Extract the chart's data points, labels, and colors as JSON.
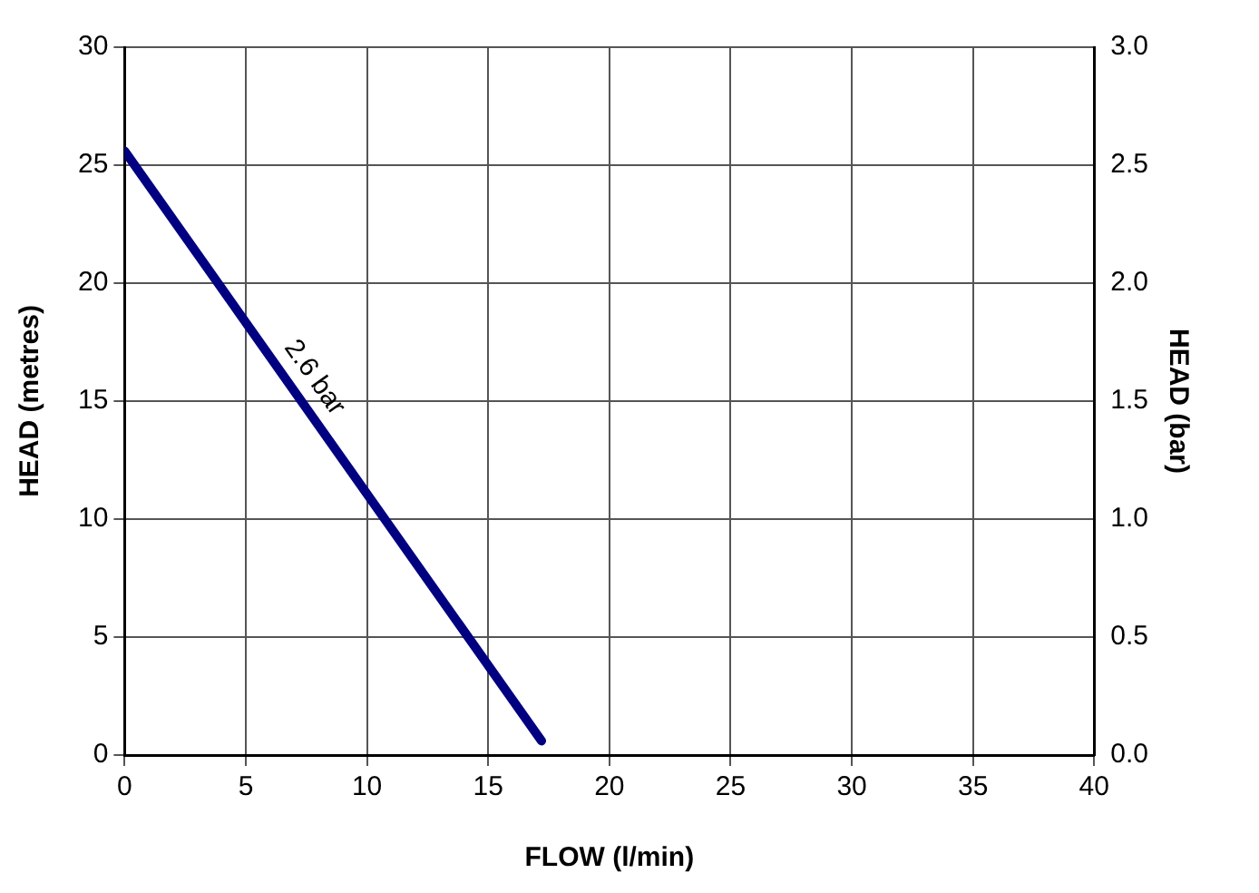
{
  "chart_data": {
    "type": "line",
    "xlabel": "FLOW (l/min)",
    "ylabel": "HEAD (metres)",
    "y2label": "HEAD (bar)",
    "x": [
      0,
      17.2
    ],
    "series": [
      {
        "color": "#000080",
        "values": [
          25.6,
          0.6
        ]
      }
    ],
    "xlim": [
      0,
      40
    ],
    "xticks": [
      0,
      5,
      10,
      15,
      20,
      25,
      30,
      35,
      40
    ],
    "ylim": [
      0,
      30
    ],
    "yticks": [
      0,
      5,
      10,
      15,
      20,
      25,
      30
    ],
    "y2lim": [
      0,
      3
    ],
    "y2ticks": [
      {
        "value": 0,
        "label": "0.0"
      },
      {
        "value": 0.5,
        "label": "0.5"
      },
      {
        "value": 1,
        "label": "1.0"
      },
      {
        "value": 1.5,
        "label": "1.5"
      },
      {
        "value": 2,
        "label": "2.0"
      },
      {
        "value": 2.5,
        "label": "2.5"
      },
      {
        "value": 3,
        "label": "3.0"
      }
    ],
    "annotations": [
      {
        "text": "2.6 bar",
        "x": 7,
        "y": 15.4
      }
    ],
    "grid": true,
    "legend": false,
    "marker": "none",
    "line_style": "solid"
  }
}
